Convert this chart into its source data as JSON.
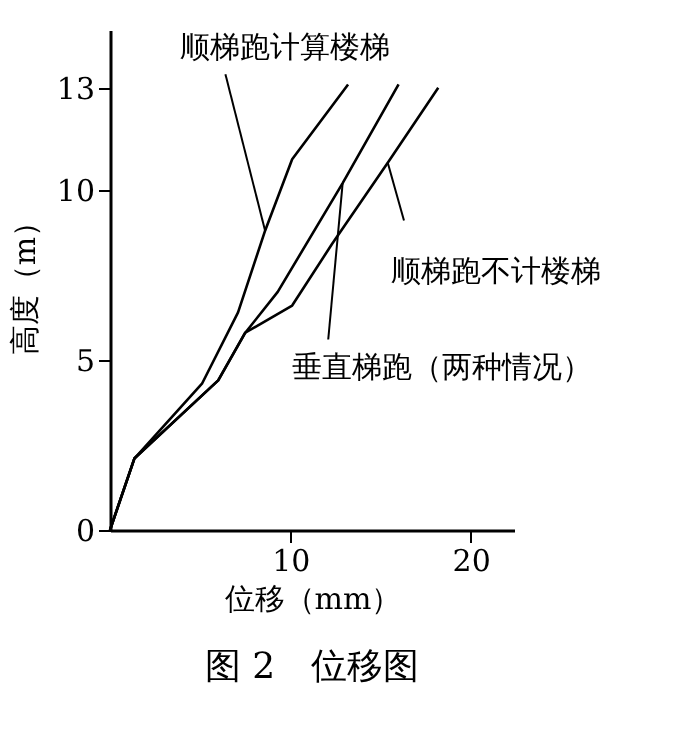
{
  "chart_data": {
    "type": "line",
    "title": "图 2　位移图",
    "xlabel": "位移（mm）",
    "ylabel": "高度（m）",
    "xlim": [
      0,
      22.4
    ],
    "ylim": [
      0,
      14.7
    ],
    "xticks": [
      10,
      20
    ],
    "yticks": [
      0,
      5,
      10,
      13
    ],
    "grid": false,
    "marker": "none",
    "line_style": "solid",
    "series": [
      {
        "color": "#000000",
        "x": [
          0,
          1.35,
          5.1,
          7.1,
          8.6,
          10.1,
          13.2
        ],
        "values": [
          0,
          2.1,
          4.3,
          6.4,
          8.8,
          10.9,
          13.1
        ]
      },
      {
        "color": "#000000",
        "x": [
          0,
          1.35,
          6,
          7.5,
          9.3,
          12.9,
          16
        ],
        "values": [
          0,
          2.1,
          4.4,
          5.8,
          7.0,
          10.2,
          13.1
        ]
      },
      {
        "color": "#000000",
        "x": [
          0,
          1.35,
          6,
          7.5,
          10.1,
          12.3,
          15.4,
          18.2
        ],
        "values": [
          0,
          2.1,
          4.4,
          5.8,
          6.6,
          8.4,
          10.8,
          13.0
        ]
      }
    ],
    "annotations": [
      {
        "text": "顺梯跑计算楼梯",
        "x": 8.6,
        "y": 8.8
      },
      {
        "text": "垂直梯跑（两种情况）",
        "x": 12.9,
        "y": 10.2
      },
      {
        "text": "顺梯跑不计楼梯",
        "x": 15.4,
        "y": 10.8
      }
    ]
  }
}
